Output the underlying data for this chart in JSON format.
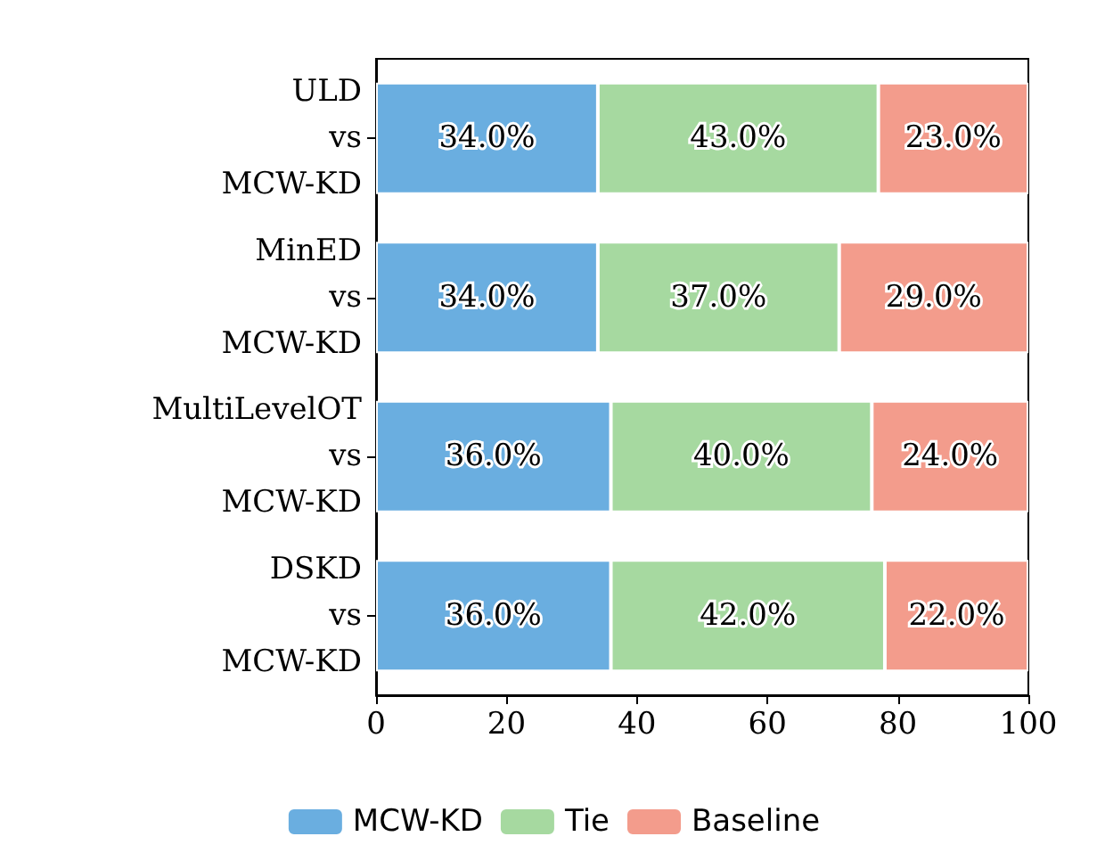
{
  "chart_data": {
    "type": "bar",
    "orientation": "horizontal",
    "stacked": true,
    "categories": [
      "ULD\nvs\nMCW-KD",
      "MinED\nvs\nMCW-KD",
      "MultiLevelOT\nvs\nMCW-KD",
      "DSKD\nvs\nMCW-KD"
    ],
    "series": [
      {
        "name": "MCW-KD",
        "color": "#6aaee0",
        "values": [
          34,
          34,
          36,
          36
        ],
        "value_labels": [
          "34.0%",
          "34.0%",
          "36.0%",
          "36.0%"
        ]
      },
      {
        "name": "Tie",
        "color": "#a6d9a0",
        "values": [
          43,
          37,
          40,
          42
        ],
        "value_labels": [
          "43.0%",
          "37.0%",
          "40.0%",
          "42.0%"
        ]
      },
      {
        "name": "Baseline",
        "color": "#f39c8c",
        "values": [
          23,
          29,
          24,
          22
        ],
        "value_labels": [
          "23.0%",
          "29.0%",
          "24.0%",
          "22.0%"
        ]
      }
    ],
    "xlim": [
      0,
      100
    ],
    "xticks": [
      0,
      20,
      40,
      60,
      80,
      100
    ],
    "legend": "bottom",
    "grid": false
  }
}
